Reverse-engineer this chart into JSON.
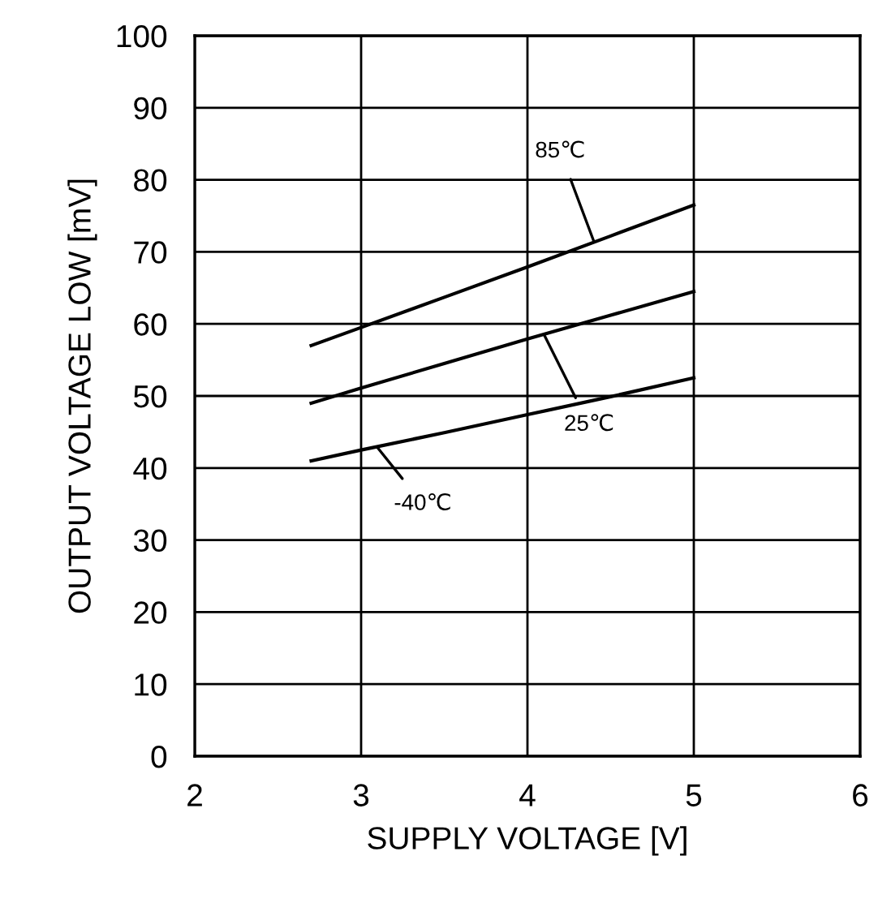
{
  "chart_data": {
    "type": "line",
    "xlabel": "SUPPLY VOLTAGE [V]",
    "ylabel": "OUTPUT VOLTAGE LOW [mV]",
    "xlim": [
      2,
      6
    ],
    "xticks": [
      2,
      3,
      4,
      5,
      6
    ],
    "ylim": [
      0,
      100
    ],
    "yticks": [
      0,
      10,
      20,
      30,
      40,
      50,
      60,
      70,
      80,
      90,
      100
    ],
    "grid": true,
    "marker": "none",
    "line_style": "solid",
    "series": [
      {
        "color": "#000000",
        "x": [
          2.7,
          3,
          3.5,
          4,
          4.5,
          5
        ],
        "values": [
          57,
          59.5,
          63.7,
          67.9,
          72.2,
          76.5
        ]
      },
      {
        "color": "#000000",
        "x": [
          2.7,
          3,
          3.5,
          4,
          4.5,
          5
        ],
        "values": [
          49,
          51.1,
          54.5,
          57.9,
          61.2,
          64.5
        ]
      },
      {
        "color": "#000000",
        "x": [
          2.7,
          3,
          3.5,
          4,
          4.5,
          5
        ],
        "values": [
          41,
          42.5,
          44.9,
          47.4,
          49.9,
          52.5
        ]
      }
    ],
    "annotations": [
      {
        "text": "85℃",
        "x": 4.4,
        "y": 71.4
      },
      {
        "text": "25℃",
        "x": 4.1,
        "y": 58.5
      },
      {
        "text": "-40℃",
        "x": 3.1,
        "y": 42.8
      }
    ]
  }
}
